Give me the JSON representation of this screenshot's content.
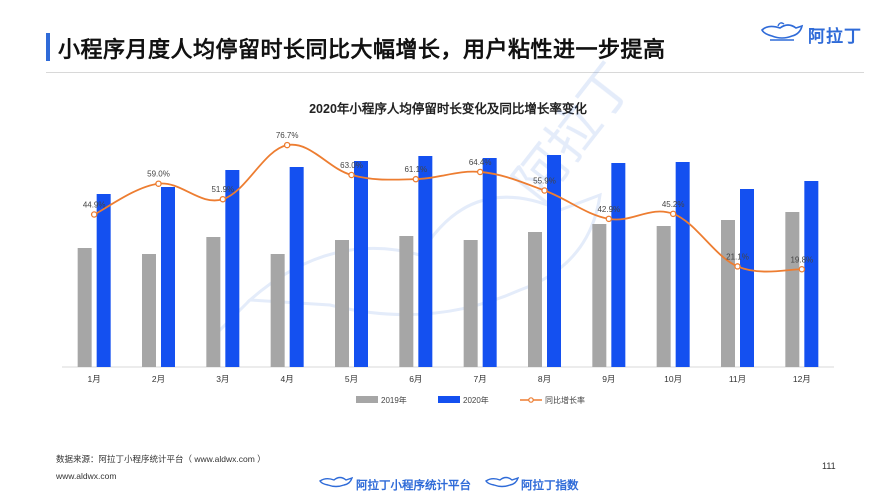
{
  "header": {
    "title": "小程序月度人均停留时长同比大幅增长，用户粘性进一步提高",
    "logo_text": "阿拉丁"
  },
  "footer": {
    "source": "数据来源：阿拉丁小程序统计平台（ www.aldwx.com ）",
    "site": "www.aldwx.com",
    "page_number": "111",
    "brand_1": "阿拉丁小程序统计平台",
    "brand_2": "阿拉丁指数"
  },
  "colors": {
    "accent": "#2f6bd8",
    "bar_2019": "#a6a6a6",
    "bar_2020": "#1450f0",
    "line": "#ed7d31"
  },
  "chart_data": {
    "type": "bar",
    "title": "2020年小程序人均停留时长变化及同比增长率变化",
    "categories": [
      "1月",
      "2月",
      "3月",
      "4月",
      "5月",
      "6月",
      "7月",
      "8月",
      "9月",
      "10月",
      "11月",
      "12月"
    ],
    "series": [
      {
        "name": "2019年",
        "type": "bar",
        "values": [
          119,
          113,
          130,
          113,
          127,
          131,
          127,
          135,
          143,
          141,
          147,
          155
        ]
      },
      {
        "name": "2020年",
        "type": "bar",
        "values": [
          173,
          180,
          197,
          200,
          206,
          211,
          209,
          212,
          204,
          205,
          178,
          186
        ]
      },
      {
        "name": "同比增长率",
        "type": "line",
        "smooth": true,
        "values": [
          44.9,
          59.0,
          51.9,
          76.7,
          63.0,
          61.1,
          64.4,
          55.9,
          42.9,
          45.2,
          21.1,
          19.8
        ],
        "labels": [
          "44.9%",
          "59.0%",
          "51.9%",
          "76.7%",
          "63.0%",
          "61.1%",
          "64.4%",
          "55.9%",
          "42.9%",
          "45.2%",
          "21.1%",
          "19.8%"
        ]
      }
    ],
    "bar_ylim": [
      0,
      240
    ],
    "line_ylim": [
      -25,
      85
    ],
    "legend": [
      "2019年",
      "2020年",
      "同比增长率"
    ],
    "legend_position": "bottom",
    "grid": false,
    "watermark": "阿拉丁"
  }
}
